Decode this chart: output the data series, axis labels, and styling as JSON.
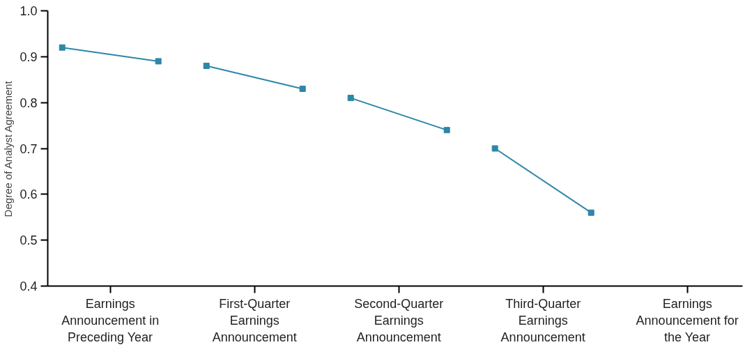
{
  "chart_data": {
    "type": "line",
    "ylabel": "Degree of Analyst Agreement",
    "categories": [
      null,
      "Earnings Announcement in Preceding Year",
      null,
      null,
      "First-Quarter Earnings Announcement",
      null,
      null,
      "Second-Quarter Earnings Announcement",
      null,
      null,
      "Third-Quarter Earnings Announcement",
      null,
      null,
      "Earnings Announcement for the Year",
      null
    ],
    "ylim": [
      0.4,
      1.0
    ],
    "yticks": [
      0.4,
      0.5,
      0.6,
      0.7,
      0.8,
      0.9,
      {
        "value": 1.0,
        "label": "1.0"
      }
    ],
    "marker": "square",
    "series": [
      {
        "color": "#2e86a8",
        "values": [
          0.92,
          null,
          0.89,
          null,
          null,
          null,
          null,
          null,
          null,
          null,
          null,
          null,
          null,
          null,
          null
        ]
      },
      {
        "color": "#2e86a8",
        "values": [
          null,
          null,
          null,
          0.88,
          null,
          0.83,
          null,
          null,
          null,
          null,
          null,
          null,
          null,
          null,
          null
        ]
      },
      {
        "color": "#2e86a8",
        "values": [
          null,
          null,
          null,
          null,
          null,
          null,
          0.81,
          null,
          0.74,
          null,
          null,
          null,
          null,
          null,
          null
        ]
      },
      {
        "color": "#2e86a8",
        "values": [
          null,
          null,
          null,
          null,
          null,
          null,
          null,
          null,
          null,
          0.7,
          null,
          0.56,
          null,
          null,
          null
        ]
      }
    ]
  }
}
